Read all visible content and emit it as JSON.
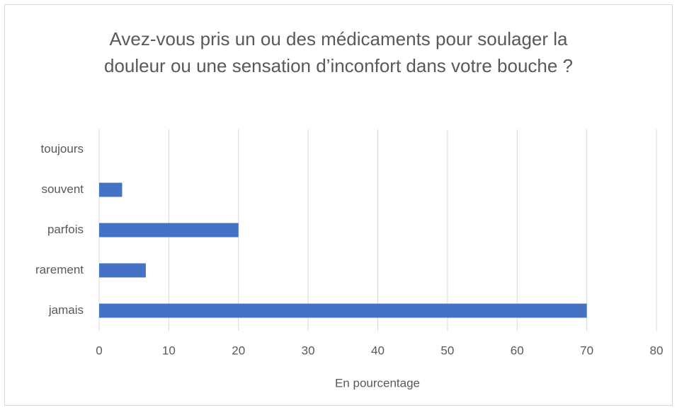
{
  "chart_data": {
    "type": "bar",
    "orientation": "horizontal",
    "title": "Avez-vous pris un ou des médicaments pour soulager la douleur ou une sensation d’inconfort dans votre bouche ?",
    "x_label": "En pourcentage",
    "categories": [
      "toujours",
      "souvent",
      "parfois",
      "rarement",
      "jamais"
    ],
    "values": [
      0,
      3.3,
      20,
      6.7,
      70
    ],
    "color": "#4472c4",
    "xlim": [
      0,
      80
    ],
    "xticks": [
      0,
      10,
      20,
      30,
      40,
      50,
      60,
      70,
      80
    ],
    "grid": true
  }
}
